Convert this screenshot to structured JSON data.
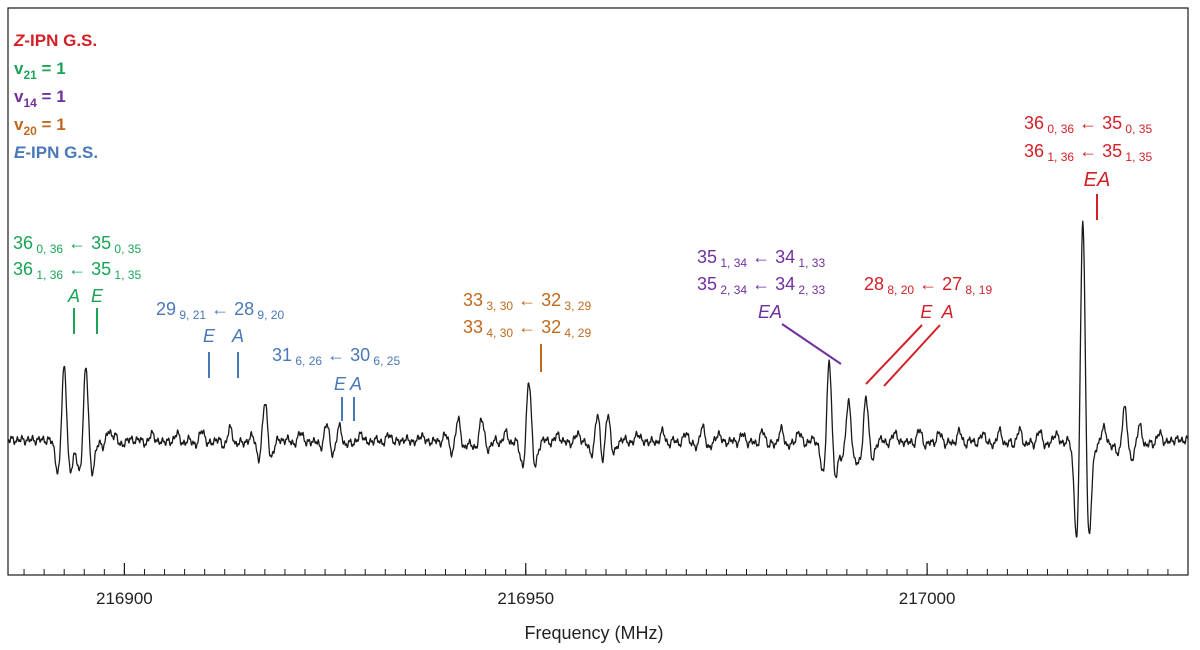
{
  "chart_data": {
    "type": "line",
    "xlabel": "Frequency (MHz)",
    "ylabel": "",
    "xlim": [
      216885.5,
      217032.5
    ],
    "x_ticks": [
      216900,
      216950,
      217000
    ],
    "x_tick_labels": [
      "216900",
      "216950",
      "217000"
    ],
    "x_minor_step": 2.5,
    "grid": false,
    "legend_position": "top-left",
    "legend": [
      {
        "key": "z",
        "prefix": "Z",
        "suffix": "-IPN G.S.",
        "color": "#d32027"
      },
      {
        "key": "v21",
        "base": "v",
        "sub": "21",
        "suffix": " = 1",
        "color": "#1aa457"
      },
      {
        "key": "v14",
        "base": "v",
        "sub": "14",
        "suffix": " = 1",
        "color": "#7030a0"
      },
      {
        "key": "v20",
        "base": "v",
        "sub": "20",
        "suffix": " = 1",
        "color": "#c0691d"
      },
      {
        "key": "e",
        "prefix": "E",
        "suffix": "-IPN G.S.",
        "color": "#4a78b8"
      }
    ],
    "peaks": [
      {
        "x": 216892.5,
        "a": 1.05,
        "series": "v21"
      },
      {
        "x": 216895.2,
        "a": 1.05,
        "series": "v21"
      },
      {
        "x": 216898.0,
        "a": 0.2
      },
      {
        "x": 216898.8,
        "a": 0.18
      },
      {
        "x": 216903.5,
        "a": 0.1
      },
      {
        "x": 216906.5,
        "a": 0.1
      },
      {
        "x": 216909.7,
        "a": 0.15,
        "series": "e"
      },
      {
        "x": 216913.2,
        "a": 0.17,
        "series": "e"
      },
      {
        "x": 216916.0,
        "a": 0.1
      },
      {
        "x": 216917.5,
        "a": 0.55
      },
      {
        "x": 216922.0,
        "a": 0.12
      },
      {
        "x": 216925.2,
        "a": 0.23,
        "series": "e"
      },
      {
        "x": 216926.8,
        "a": 0.2,
        "series": "e"
      },
      {
        "x": 216929.5,
        "a": 0.1
      },
      {
        "x": 216933.0,
        "a": 0.08
      },
      {
        "x": 216937.0,
        "a": 0.08
      },
      {
        "x": 216940.0,
        "a": 0.08
      },
      {
        "x": 216941.6,
        "a": 0.3
      },
      {
        "x": 216944.5,
        "a": 0.32
      },
      {
        "x": 216947.5,
        "a": 0.1
      },
      {
        "x": 216950.4,
        "a": 0.85,
        "series": "v20"
      },
      {
        "x": 216954.0,
        "a": 0.08
      },
      {
        "x": 216956.5,
        "a": 0.1
      },
      {
        "x": 216959.0,
        "a": 0.45
      },
      {
        "x": 216960.2,
        "a": 0.45
      },
      {
        "x": 216964.0,
        "a": 0.1
      },
      {
        "x": 216967.0,
        "a": 0.12
      },
      {
        "x": 216970.0,
        "a": 0.1
      },
      {
        "x": 216972.0,
        "a": 0.18
      },
      {
        "x": 216974.0,
        "a": 0.1
      },
      {
        "x": 216977.0,
        "a": 0.08
      },
      {
        "x": 216979.5,
        "a": 0.12
      },
      {
        "x": 216981.8,
        "a": 0.15
      },
      {
        "x": 216984.0,
        "a": 0.12
      },
      {
        "x": 216987.8,
        "a": 1.1,
        "series": "v14"
      },
      {
        "x": 216990.2,
        "a": 0.55,
        "series": "z"
      },
      {
        "x": 216992.4,
        "a": 0.62,
        "series": "z"
      },
      {
        "x": 216996.0,
        "a": 0.12
      },
      {
        "x": 216999.0,
        "a": 0.15
      },
      {
        "x": 217001.5,
        "a": 0.1
      },
      {
        "x": 217004.0,
        "a": 0.12
      },
      {
        "x": 217007.0,
        "a": 0.1
      },
      {
        "x": 217009.0,
        "a": 0.12
      },
      {
        "x": 217011.5,
        "a": 0.14
      },
      {
        "x": 217014.0,
        "a": 0.12
      },
      {
        "x": 217016.0,
        "a": 0.1
      },
      {
        "x": 217019.4,
        "a": 3.1,
        "series": "z"
      },
      {
        "x": 217022.0,
        "a": 0.2
      },
      {
        "x": 217024.6,
        "a": 0.48
      },
      {
        "x": 217026.5,
        "a": 0.2
      },
      {
        "x": 217029.0,
        "a": 0.1
      }
    ]
  },
  "annotations": [
    {
      "id": "v21",
      "color": "#1aa457",
      "lines": [
        {
          "parts": [
            {
              "t": "36"
            },
            {
              "t": " 0, 36",
              "sub": true
            },
            {
              "t": " ← 35"
            },
            {
              "t": " 0, 35",
              "sub": true
            }
          ]
        },
        {
          "parts": [
            {
              "t": "36"
            },
            {
              "t": " 1, 36",
              "sub": true
            },
            {
              "t": " ← 35"
            },
            {
              "t": " 1, 35",
              "sub": true
            }
          ]
        }
      ],
      "tags": [
        "A",
        "E"
      ]
    },
    {
      "id": "e1",
      "color": "#4a78b8",
      "lines": [
        {
          "parts": [
            {
              "t": "29"
            },
            {
              "t": " 9, 21",
              "sub": true
            },
            {
              "t": " ← 28"
            },
            {
              "t": " 9, 20",
              "sub": true
            }
          ]
        }
      ],
      "tags": [
        "E",
        "A"
      ]
    },
    {
      "id": "e2",
      "color": "#4a78b8",
      "lines": [
        {
          "parts": [
            {
              "t": "31"
            },
            {
              "t": " 6, 26",
              "sub": true
            },
            {
              "t": " ← 30"
            },
            {
              "t": " 6, 25",
              "sub": true
            }
          ]
        }
      ],
      "tags": [
        "E",
        "A"
      ]
    },
    {
      "id": "v20",
      "color": "#c0691d",
      "lines": [
        {
          "parts": [
            {
              "t": "33"
            },
            {
              "t": " 3, 30",
              "sub": true
            },
            {
              "t": " ← 32"
            },
            {
              "t": " 3, 29",
              "sub": true
            }
          ]
        },
        {
          "parts": [
            {
              "t": "33"
            },
            {
              "t": " 4, 30",
              "sub": true
            },
            {
              "t": " ← 32"
            },
            {
              "t": " 4, 29",
              "sub": true
            }
          ]
        }
      ],
      "tags": []
    },
    {
      "id": "v14",
      "color": "#7030a0",
      "lines": [
        {
          "parts": [
            {
              "t": "35"
            },
            {
              "t": " 1, 34",
              "sub": true
            },
            {
              "t": " ← 34"
            },
            {
              "t": " 1, 33",
              "sub": true
            }
          ]
        },
        {
          "parts": [
            {
              "t": "35"
            },
            {
              "t": " 2, 34",
              "sub": true
            },
            {
              "t": " ← 34"
            },
            {
              "t": " 2, 33",
              "sub": true
            }
          ]
        }
      ],
      "tags": [
        "EA"
      ]
    },
    {
      "id": "z28",
      "color": "#d32027",
      "lines": [
        {
          "parts": [
            {
              "t": "28"
            },
            {
              "t": " 8, 20",
              "sub": true
            },
            {
              "t": " ← 27"
            },
            {
              "t": " 8, 19",
              "sub": true
            }
          ]
        }
      ],
      "tags": [
        "E  A"
      ]
    },
    {
      "id": "z36",
      "color": "#d32027",
      "lines": [
        {
          "parts": [
            {
              "t": "36"
            },
            {
              "t": " 0, 36",
              "sub": true
            },
            {
              "t": " ← 35"
            },
            {
              "t": " 0, 35",
              "sub": true
            }
          ]
        },
        {
          "parts": [
            {
              "t": "36"
            },
            {
              "t": " 1, 36",
              "sub": true
            },
            {
              "t": " ← 35"
            },
            {
              "t": " 1, 35",
              "sub": true
            }
          ]
        }
      ],
      "tags": [
        "EA"
      ]
    }
  ]
}
